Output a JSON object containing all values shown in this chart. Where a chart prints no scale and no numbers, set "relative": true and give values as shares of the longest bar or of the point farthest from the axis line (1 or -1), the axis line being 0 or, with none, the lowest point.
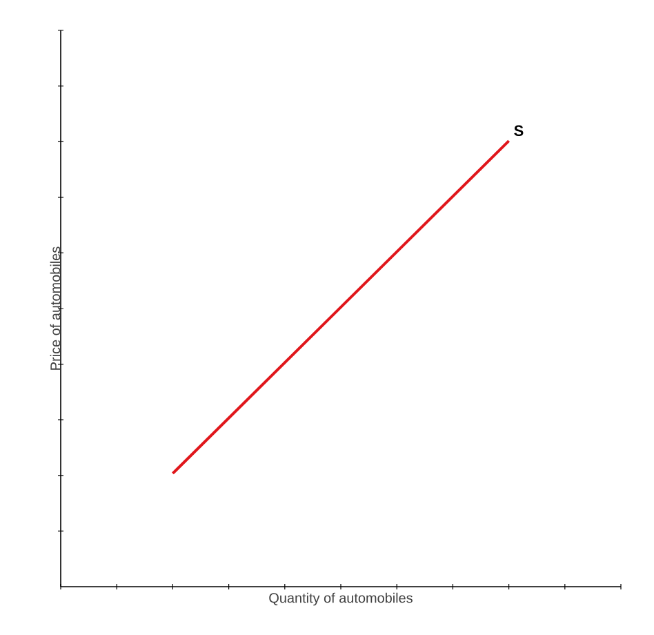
{
  "chart_data": {
    "type": "line",
    "relative": true,
    "xlabel": "Quantity of automobiles",
    "ylabel": "Price of automobiles",
    "categories": [
      null,
      null,
      null,
      null,
      null,
      null,
      null,
      null,
      null,
      null,
      null
    ],
    "series": [
      {
        "name": "S",
        "color": "#e0161b",
        "values": [
          null,
          null,
          0.254,
          null,
          null,
          null,
          null,
          null,
          1,
          null,
          null
        ]
      }
    ],
    "grid": false,
    "marker": "none",
    "line_style": "solid"
  }
}
